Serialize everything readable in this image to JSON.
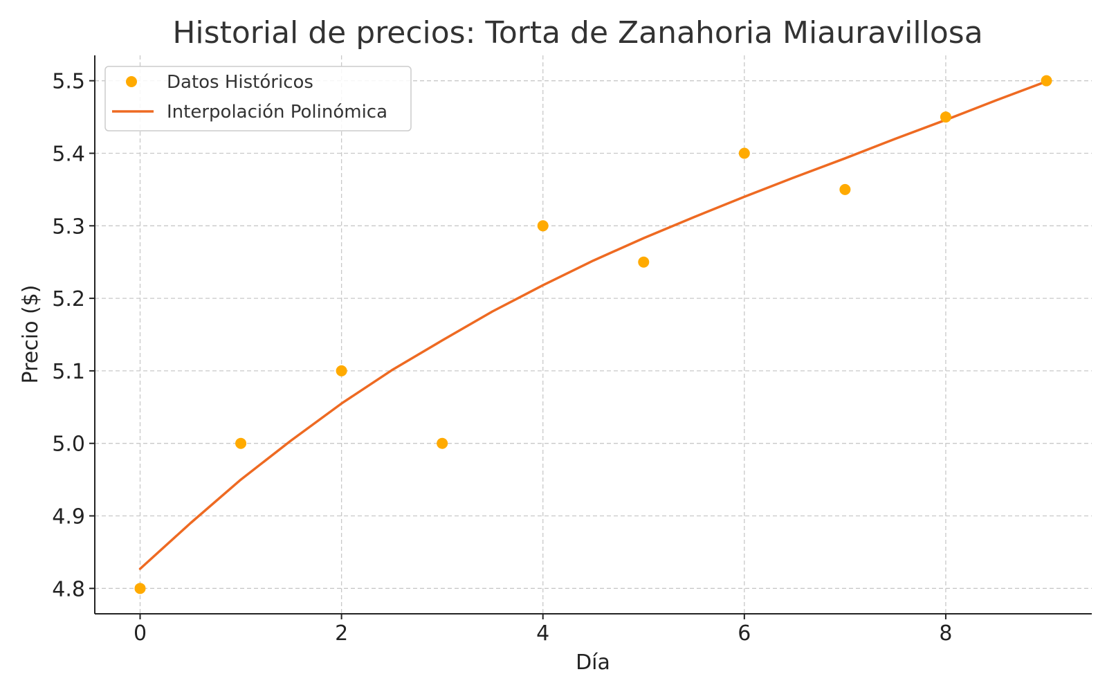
{
  "chart_data": {
    "type": "scatter",
    "title": "Historial de precios: Torta de Zanahoria Miauravillosa",
    "xlabel": "Día",
    "ylabel": "Precio ($)",
    "xlim": [
      -0.45,
      9.45
    ],
    "ylim": [
      4.765,
      5.535
    ],
    "xticks": [
      0,
      2,
      4,
      6,
      8
    ],
    "xtick_labels": [
      "0",
      "2",
      "4",
      "6",
      "8"
    ],
    "yticks": [
      4.8,
      4.9,
      5.0,
      5.1,
      5.2,
      5.3,
      5.4,
      5.5
    ],
    "ytick_labels": [
      "4.8",
      "4.9",
      "5.0",
      "5.1",
      "5.2",
      "5.3",
      "5.4",
      "5.5"
    ],
    "grid": true,
    "legend_position": "top-left",
    "series": [
      {
        "name": "Datos Históricos",
        "kind": "scatter",
        "color": "#FFAA00",
        "x": [
          0,
          1,
          2,
          3,
          4,
          5,
          6,
          7,
          8,
          9
        ],
        "y": [
          4.8,
          5.0,
          5.1,
          5.0,
          5.3,
          5.25,
          5.4,
          5.35,
          5.45,
          5.5
        ]
      },
      {
        "name": "Interpolación Polinómica",
        "kind": "line",
        "color": "#EE6A22",
        "x": [
          0,
          0.5,
          1,
          1.5,
          2,
          2.5,
          3,
          3.5,
          4,
          4.5,
          5,
          5.5,
          6,
          6.5,
          7,
          7.5,
          8,
          8.5,
          9
        ],
        "y": [
          4.827,
          4.89,
          4.95,
          5.004,
          5.055,
          5.101,
          5.142,
          5.182,
          5.218,
          5.252,
          5.283,
          5.312,
          5.34,
          5.367,
          5.393,
          5.42,
          5.446,
          5.473,
          5.499
        ]
      }
    ]
  }
}
